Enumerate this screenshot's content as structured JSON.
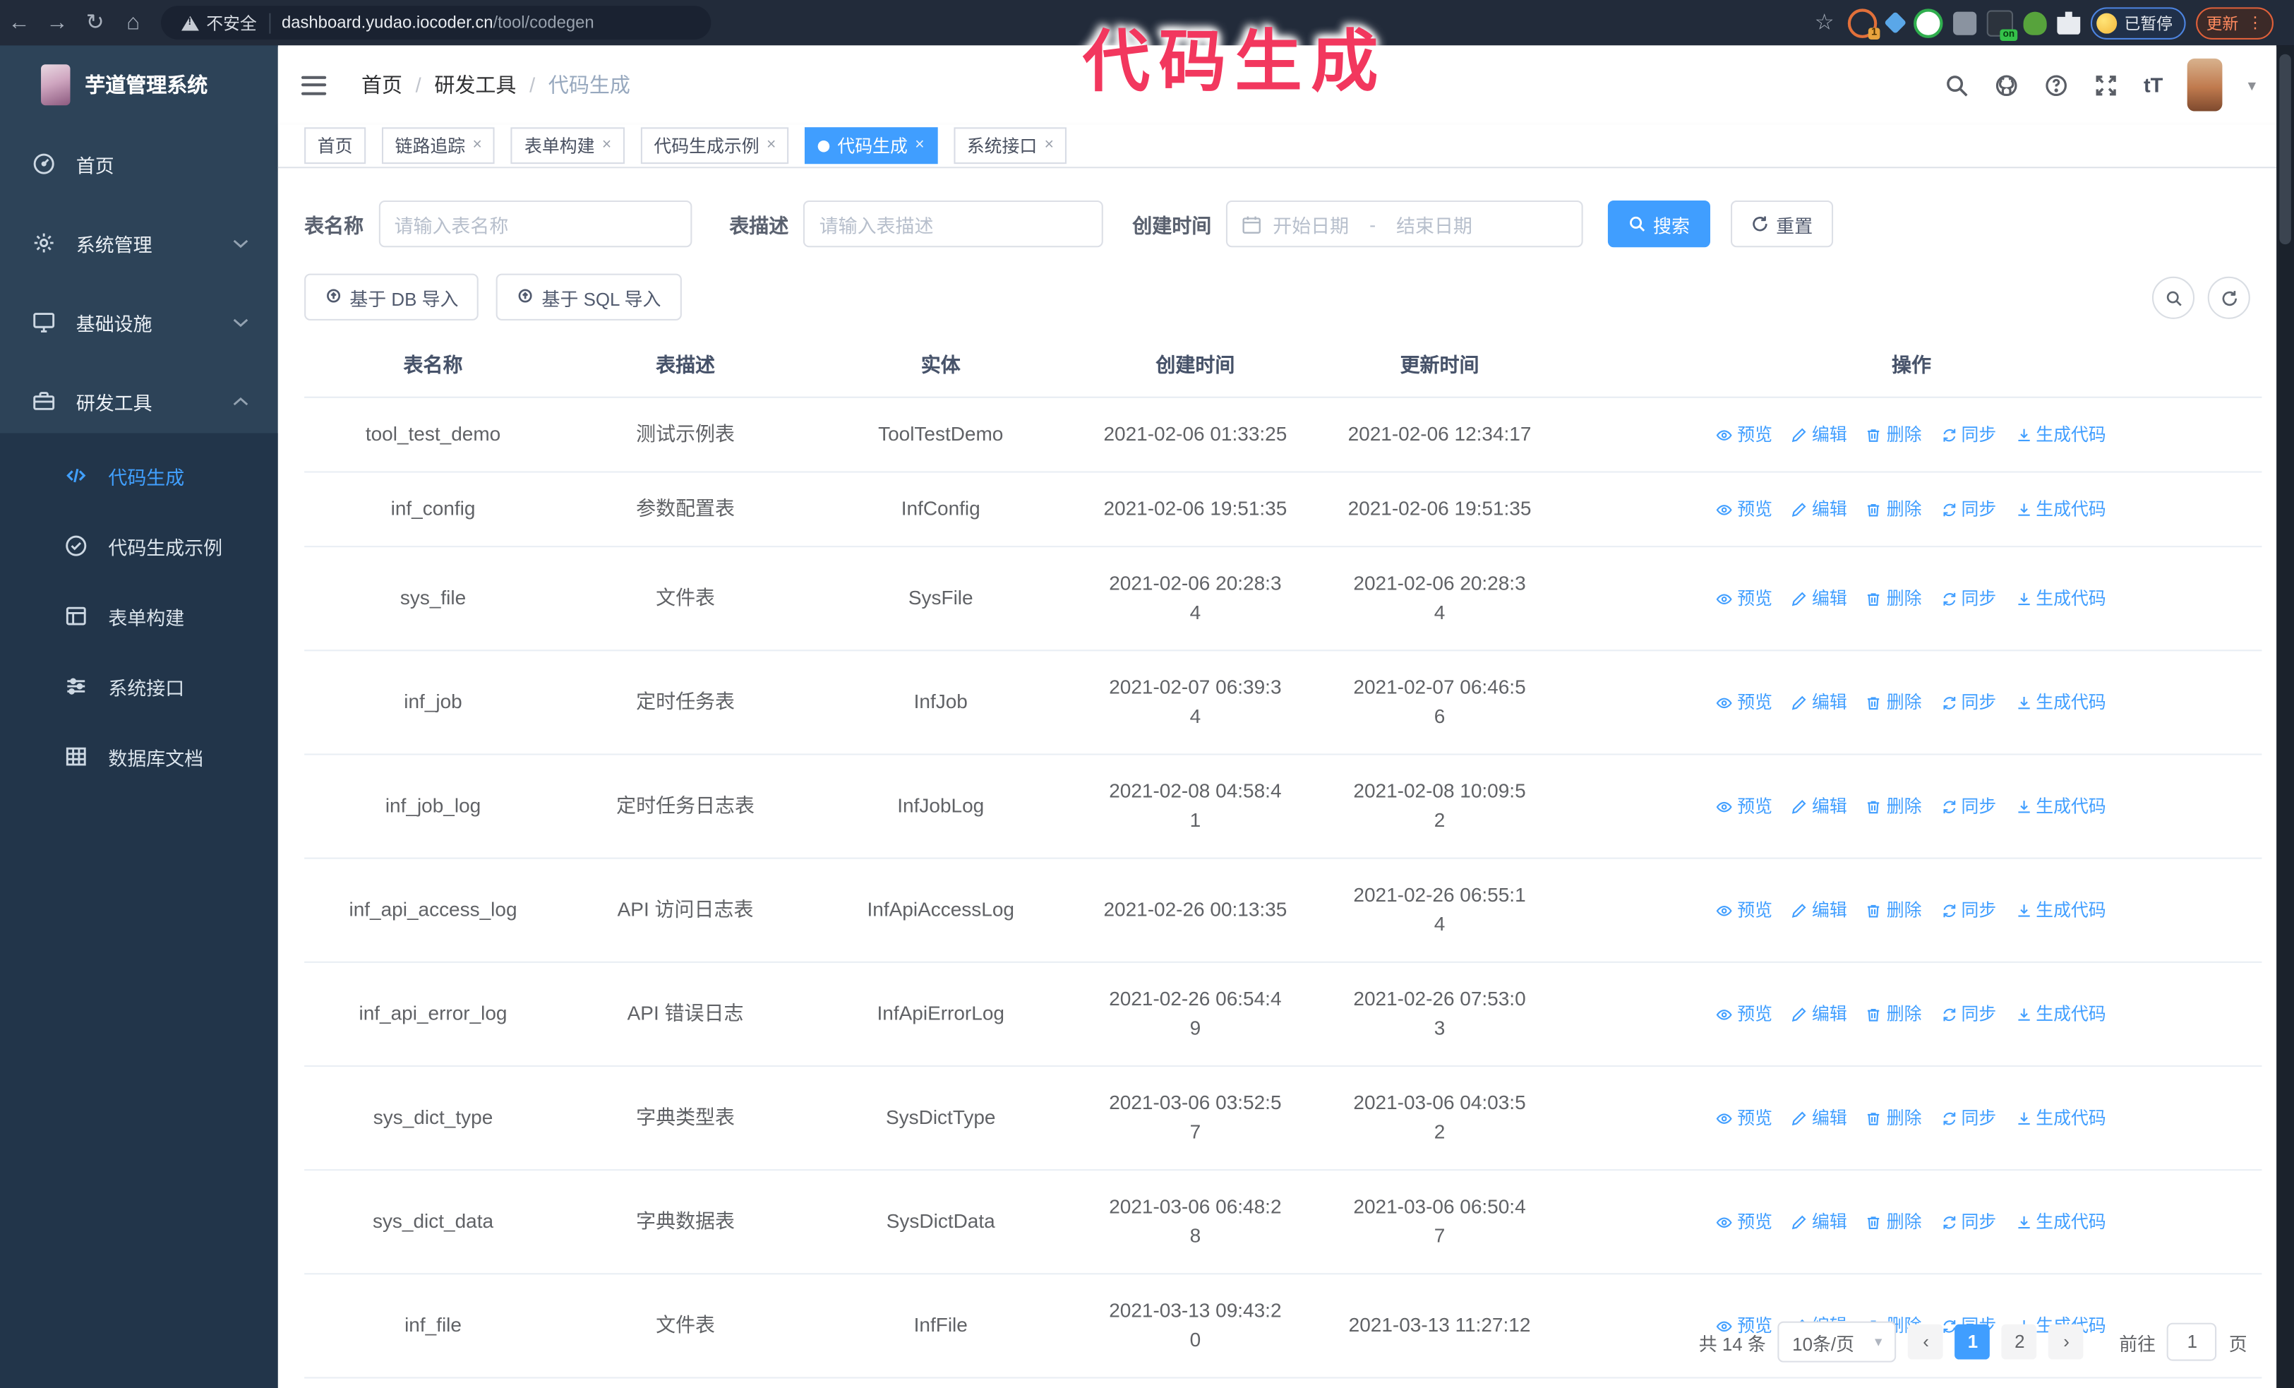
{
  "browser": {
    "security_label": "不安全",
    "url_host": "dashboard.yudao.iocoder.cn",
    "url_path": "/tool/codegen",
    "extensions": [
      {
        "name": "orange-extension",
        "badge": "1"
      },
      {
        "name": "gem-extension",
        "badge": ""
      },
      {
        "name": "green-check-extension",
        "badge": ""
      },
      {
        "name": "panel-extension",
        "badge": ""
      },
      {
        "name": "dark-extension",
        "badge": "on"
      },
      {
        "name": "green-critter-extension",
        "badge": ""
      },
      {
        "name": "puzzle-extensions-menu",
        "badge": ""
      }
    ],
    "profile_chip_label": "已暂停",
    "update_button_label": "更新"
  },
  "watermark": "代码生成",
  "glyphs": {
    "back": "←",
    "forward": "→",
    "reload": "↻",
    "home": "⌂",
    "star": "☆",
    "kebab": "⋮",
    "caret": "▾",
    "close": "×",
    "prev": "‹",
    "next": "›",
    "font_size": "tT"
  },
  "sidebar": {
    "logo_title": "芋道管理系统",
    "items": [
      {
        "id": "home",
        "label": "首页",
        "icon": "dashboard",
        "type": "parent",
        "chevron": "",
        "active": false
      },
      {
        "id": "system",
        "label": "系统管理",
        "icon": "gear",
        "type": "parent",
        "chevron": "down",
        "active": false
      },
      {
        "id": "infra",
        "label": "基础设施",
        "icon": "monitor",
        "type": "parent",
        "chevron": "down",
        "active": false
      },
      {
        "id": "devtools",
        "label": "研发工具",
        "icon": "toolbox",
        "type": "parent",
        "chevron": "up",
        "active": false
      },
      {
        "id": "codegen",
        "label": "代码生成",
        "icon": "code",
        "type": "sub",
        "chevron": "",
        "active": true
      },
      {
        "id": "codegen-example",
        "label": "代码生成示例",
        "icon": "badge-check",
        "type": "sub",
        "chevron": "",
        "active": false
      },
      {
        "id": "form-builder",
        "label": "表单构建",
        "icon": "form",
        "type": "sub",
        "chevron": "",
        "active": false
      },
      {
        "id": "system-api",
        "label": "系统接口",
        "icon": "sliders",
        "type": "sub",
        "chevron": "",
        "active": false
      },
      {
        "id": "db-doc",
        "label": "数据库文档",
        "icon": "grid",
        "type": "sub",
        "chevron": "",
        "active": false
      }
    ]
  },
  "header": {
    "breadcrumb": [
      "首页",
      "研发工具",
      "代码生成"
    ]
  },
  "tabs": [
    {
      "label": "首页",
      "closable": false,
      "active": false
    },
    {
      "label": "链路追踪",
      "closable": true,
      "active": false
    },
    {
      "label": "表单构建",
      "closable": true,
      "active": false
    },
    {
      "label": "代码生成示例",
      "closable": true,
      "active": false
    },
    {
      "label": "代码生成",
      "closable": true,
      "active": true
    },
    {
      "label": "系统接口",
      "closable": true,
      "active": false
    }
  ],
  "filters": {
    "name_label": "表名称",
    "name_placeholder": "请输入表名称",
    "desc_label": "表描述",
    "desc_placeholder": "请输入表描述",
    "date_label": "创建时间",
    "date_start_placeholder": "开始日期",
    "date_separator": "-",
    "date_end_placeholder": "结束日期",
    "search_label": "搜索",
    "reset_label": "重置"
  },
  "import_toolbar": {
    "db_button_label": "基于 DB 导入",
    "sql_button_label": "基于 SQL 导入"
  },
  "table": {
    "columns": [
      "表名称",
      "表描述",
      "实体",
      "创建时间",
      "更新时间",
      "操作"
    ],
    "actions": [
      {
        "label": "预览",
        "icon": "eye"
      },
      {
        "label": "编辑",
        "icon": "pencil"
      },
      {
        "label": "删除",
        "icon": "trash"
      },
      {
        "label": "同步",
        "icon": "sync"
      },
      {
        "label": "生成代码",
        "icon": "download"
      }
    ],
    "rows": [
      {
        "name": "tool_test_demo",
        "desc": "测试示例表",
        "entity": "ToolTestDemo",
        "created": "2021-02-06 01:33:25",
        "updated": "2021-02-06 12:34:17"
      },
      {
        "name": "inf_config",
        "desc": "参数配置表",
        "entity": "InfConfig",
        "created": "2021-02-06 19:51:35",
        "updated": "2021-02-06 19:51:35"
      },
      {
        "name": "sys_file",
        "desc": "文件表",
        "entity": "SysFile",
        "created": "2021-02-06 20:28:3\n4",
        "updated": "2021-02-06 20:28:3\n4"
      },
      {
        "name": "inf_job",
        "desc": "定时任务表",
        "entity": "InfJob",
        "created": "2021-02-07 06:39:3\n4",
        "updated": "2021-02-07 06:46:5\n6"
      },
      {
        "name": "inf_job_log",
        "desc": "定时任务日志表",
        "entity": "InfJobLog",
        "created": "2021-02-08 04:58:4\n1",
        "updated": "2021-02-08 10:09:5\n2"
      },
      {
        "name": "inf_api_access_log",
        "desc": "API 访问日志表",
        "entity": "InfApiAccessLog",
        "created": "2021-02-26 00:13:35",
        "updated": "2021-02-26 06:55:1\n4"
      },
      {
        "name": "inf_api_error_log",
        "desc": "API 错误日志",
        "entity": "InfApiErrorLog",
        "created": "2021-02-26 06:54:4\n9",
        "updated": "2021-02-26 07:53:0\n3"
      },
      {
        "name": "sys_dict_type",
        "desc": "字典类型表",
        "entity": "SysDictType",
        "created": "2021-03-06 03:52:5\n7",
        "updated": "2021-03-06 04:03:5\n2"
      },
      {
        "name": "sys_dict_data",
        "desc": "字典数据表",
        "entity": "SysDictData",
        "created": "2021-03-06 06:48:2\n8",
        "updated": "2021-03-06 06:50:4\n7"
      },
      {
        "name": "inf_file",
        "desc": "文件表",
        "entity": "InfFile",
        "created": "2021-03-13 09:43:2\n0",
        "updated": "2021-03-13 11:27:12"
      }
    ]
  },
  "pagination": {
    "total_label": "共 14 条",
    "page_size_label": "10条/页",
    "pages": [
      "1",
      "2"
    ],
    "active_page": "1",
    "goto_label": "前往",
    "goto_value": "1",
    "goto_unit": "页"
  },
  "colors": {
    "primary": "#409eff",
    "watermark": "#f2375e",
    "sidebar_bg": "#2d4358",
    "sidebar_sub_bg": "#22354a",
    "chrome_bg": "#222b3a"
  }
}
